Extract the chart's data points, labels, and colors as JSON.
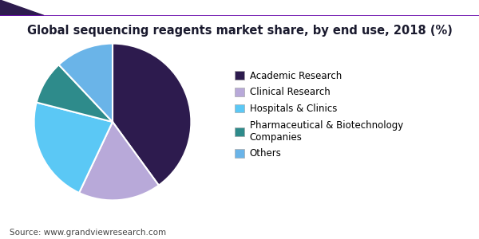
{
  "title": "Global sequencing reagents market share, by end use, 2018 (%)",
  "source": "Source: www.grandviewresearch.com",
  "labels": [
    "Academic Research",
    "Clinical Research",
    "Hospitals & Clinics",
    "Pharmaceutical & Biotechnology\nCompanies",
    "Others"
  ],
  "sizes": [
    40,
    17,
    22,
    9,
    12
  ],
  "colors": [
    "#2d1b4e",
    "#b8a9d9",
    "#5bc8f5",
    "#2e8b8b",
    "#6ab4e8"
  ],
  "startangle": 90,
  "title_fontsize": 10.5,
  "legend_fontsize": 8.5,
  "source_fontsize": 7.5,
  "background_color": "#ffffff",
  "header_color_dark": "#2d1b4e",
  "header_color_light": "#8c6fa8",
  "wedge_edge_color": "#ffffff",
  "title_color": "#1a1a2e"
}
